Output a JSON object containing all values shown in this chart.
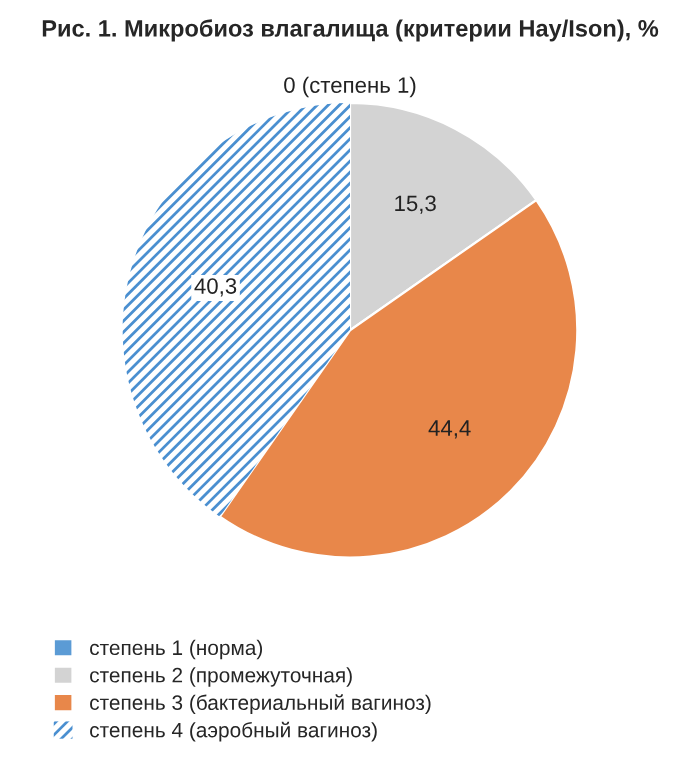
{
  "chart_data": {
    "type": "pie",
    "title": "Рис. 1. Микробиоз влагалища (критерии Hay/Ison), %",
    "categories": [
      "степень 1 (норма)",
      "степень 2 (промежуточная)",
      "степень 3 (бактериальный вагиноз)",
      "степень 4 (аэробный вагиноз)"
    ],
    "values": [
      0,
      15.3,
      44.4,
      40.3
    ],
    "colors": [
      "#5b9bd5",
      "#d3d3d3",
      "#e8874a",
      "#4a8fd0"
    ],
    "value_labels": [
      "0 (степень 1)",
      "15,3",
      "44,4",
      "40,3"
    ],
    "legend": "bottom left"
  }
}
